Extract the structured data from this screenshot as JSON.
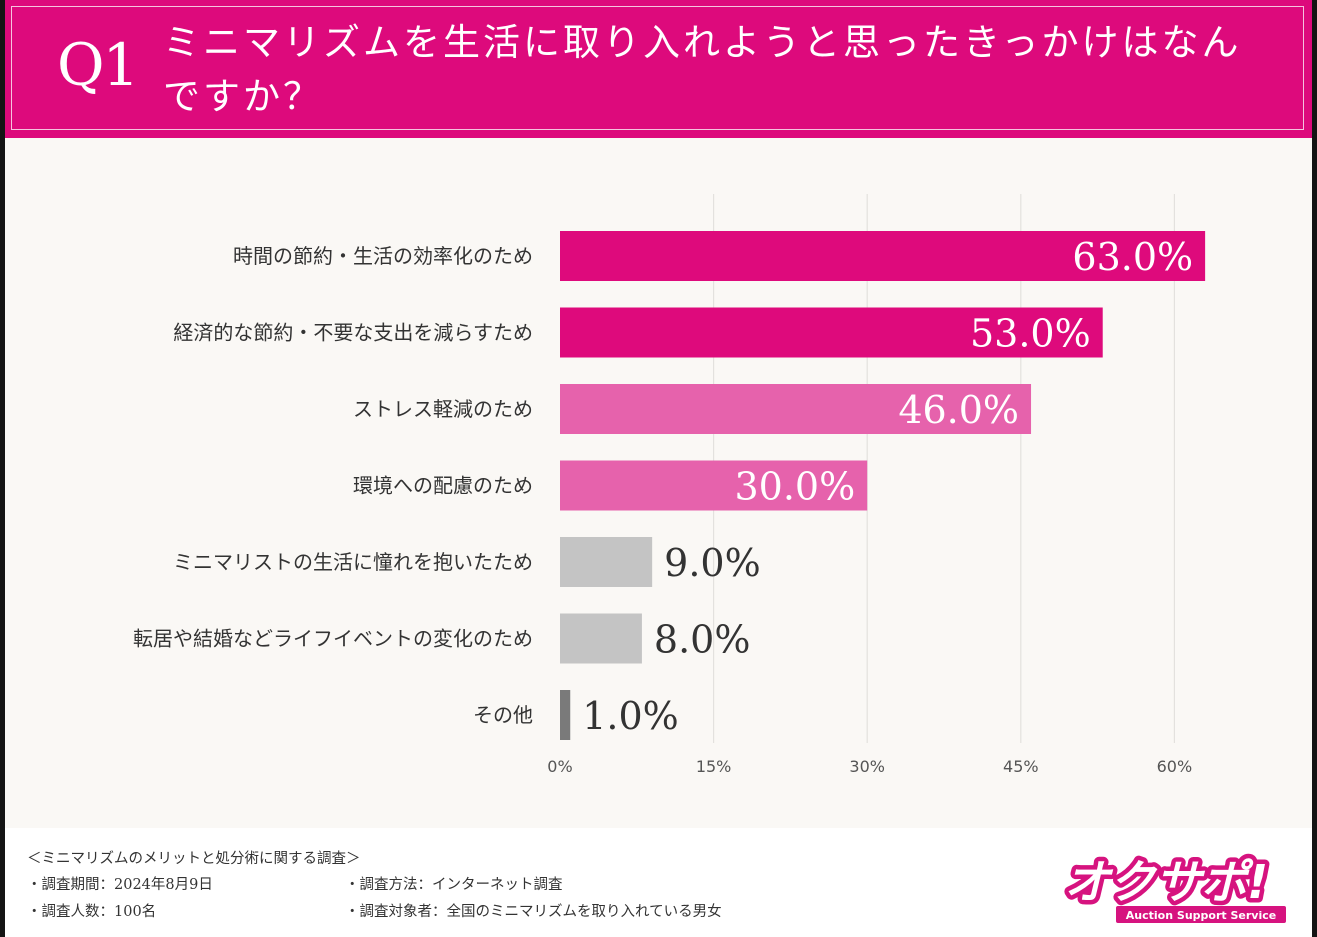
{
  "header": {
    "q_label": "Q1",
    "title": "ミニマリズムを生活に取り入れようと思ったきっかけはなんですか？"
  },
  "colors": {
    "header_bg": "#dd0a7c",
    "bar_dark_pink": "#de0a7c",
    "bar_light_pink": "#e662ac",
    "bar_gray": "#c4c4c4",
    "bar_dark_gray": "#7a7a7a"
  },
  "chart_data": {
    "type": "bar",
    "orientation": "horizontal",
    "categories": [
      "時間の節約・生活の効率化のため",
      "経済的な節約・不要な支出を減らすため",
      "ストレス軽減のため",
      "環境への配慮のため",
      "ミニマリストの生活に憧れを抱いたため",
      "転居や結婚などライフイベントの変化のため",
      "その他"
    ],
    "values": [
      63.0,
      53.0,
      46.0,
      30.0,
      9.0,
      8.0,
      1.0
    ],
    "value_labels": [
      "63.0%",
      "53.0%",
      "46.0%",
      "30.0%",
      "9.0%",
      "8.0%",
      "1.0%"
    ],
    "bar_colors": [
      "#de0a7c",
      "#de0a7c",
      "#e662ac",
      "#e662ac",
      "#c4c4c4",
      "#c4c4c4",
      "#7a7a7a"
    ],
    "x_ticks": [
      0,
      15,
      30,
      45,
      60
    ],
    "x_tick_labels": [
      "0%",
      "15%",
      "30%",
      "45%",
      "60%"
    ],
    "xlim": [
      0,
      63
    ],
    "grid": true
  },
  "footer": {
    "survey_title": "＜ミニマリズムのメリットと処分術に関する調査＞",
    "period": "・調査期間：2024年8月9日",
    "respondents": "・調査人数：100名",
    "method": "・調査方法：インターネット調査",
    "target": "・調査対象者：全国のミニマリズムを取り入れている男女"
  },
  "logo": {
    "text": "オクサポ!",
    "subtext": "Auction Support Service"
  }
}
